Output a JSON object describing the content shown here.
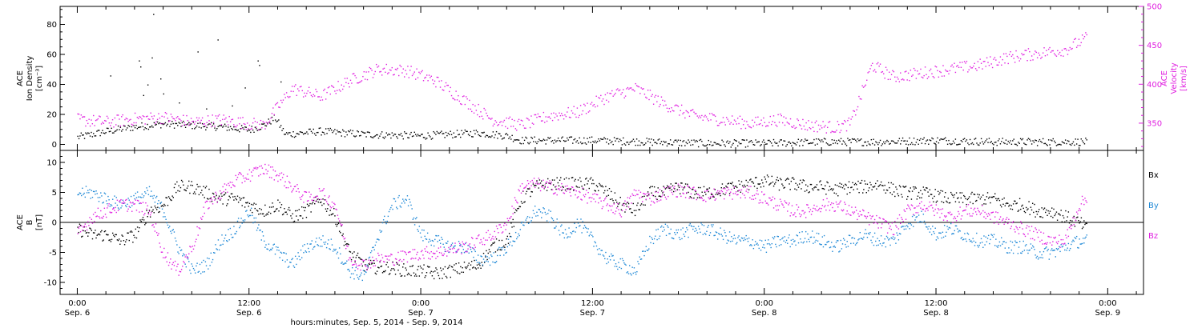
{
  "colors": {
    "black": "#000000",
    "magenta": "#e020e0",
    "blue": "#1e88d6"
  },
  "chart_data": [
    {
      "type": "scatter",
      "panel": "top",
      "ylabel_lines": [
        "ACE",
        "Ion Density",
        "[cm⁻³]"
      ],
      "ylabel_right_lines": [
        "ACE",
        "Velocity",
        "[km/s]"
      ],
      "ylim": [
        -4,
        92
      ],
      "y_ticks": [
        0,
        20,
        40,
        60,
        80
      ],
      "y_ticks_labels": [
        "0",
        "20",
        "40",
        "60",
        "80"
      ],
      "y2lim": [
        315,
        500
      ],
      "y2_ticks": [
        350,
        400,
        450,
        500
      ],
      "y2_ticks_labels": [
        "350",
        "400",
        "450",
        "500"
      ],
      "series": [
        {
          "key": "density",
          "axis": "left",
          "color_key": "black",
          "x": [
            0,
            2,
            4,
            6,
            8,
            10,
            12,
            13,
            13.8,
            14.5,
            17,
            20,
            24,
            28,
            30,
            31,
            32,
            36,
            40,
            44,
            48,
            52,
            56,
            60,
            64,
            68,
            70.5
          ],
          "y": [
            5,
            9,
            12,
            14,
            13,
            12,
            10,
            13,
            18,
            7,
            9,
            7,
            6,
            8,
            6,
            3,
            3,
            3,
            2,
            1,
            1,
            2,
            2,
            3,
            2,
            2,
            2
          ]
        },
        {
          "key": "velocity",
          "axis": "right",
          "color_key": "magenta",
          "x": [
            0,
            2,
            4,
            6,
            8,
            10,
            12,
            13,
            15,
            17,
            19,
            21,
            23,
            25,
            27,
            29,
            31,
            33,
            35,
            37,
            39,
            41,
            43,
            45,
            47,
            49,
            51,
            53,
            54,
            55.5,
            57,
            59,
            61,
            63,
            65,
            67,
            69,
            70.5
          ],
          "y": [
            355,
            352,
            356,
            358,
            352,
            355,
            350,
            348,
            395,
            385,
            405,
            420,
            418,
            405,
            380,
            355,
            348,
            360,
            365,
            385,
            395,
            375,
            360,
            355,
            350,
            355,
            348,
            345,
            350,
            425,
            410,
            415,
            420,
            425,
            435,
            440,
            445,
            460
          ]
        }
      ],
      "scatter_points": [
        {
          "x": 5.3,
          "y": 87
        },
        {
          "x": 9.8,
          "y": 70
        },
        {
          "x": 8.4,
          "y": 62
        },
        {
          "x": 4.3,
          "y": 56
        },
        {
          "x": 4.4,
          "y": 52
        },
        {
          "x": 2.3,
          "y": 46
        },
        {
          "x": 5.2,
          "y": 58
        },
        {
          "x": 5.8,
          "y": 44
        },
        {
          "x": 4.9,
          "y": 40
        },
        {
          "x": 12.6,
          "y": 56
        },
        {
          "x": 12.7,
          "y": 53
        },
        {
          "x": 11.7,
          "y": 38
        },
        {
          "x": 10.8,
          "y": 26
        },
        {
          "x": 6.0,
          "y": 34
        },
        {
          "x": 7.1,
          "y": 28
        },
        {
          "x": 14.2,
          "y": 42
        },
        {
          "x": 4.6,
          "y": 33
        },
        {
          "x": 9.0,
          "y": 24
        }
      ]
    },
    {
      "type": "scatter",
      "panel": "bottom",
      "ylabel_lines": [
        "ACE",
        "B",
        "[nT]"
      ],
      "ylim": [
        -12,
        12
      ],
      "y_ticks": [
        -10,
        -5,
        0,
        5,
        10
      ],
      "y_ticks_labels": [
        "-10",
        "-5",
        "0",
        "5",
        "10"
      ],
      "zero_line": true,
      "series": [
        {
          "key": "bx",
          "legend_label": "Bx",
          "color_key": "black",
          "x": [
            0,
            1,
            2,
            3,
            4,
            5,
            6,
            7,
            8,
            9,
            10,
            11,
            12,
            13,
            14,
            15,
            16,
            17,
            18,
            19,
            20,
            21,
            22,
            23,
            24,
            25,
            26,
            27,
            28,
            29,
            30,
            31,
            32,
            33,
            34,
            35,
            36,
            37,
            38,
            39,
            40,
            41,
            42,
            43,
            44,
            45,
            46,
            47,
            48,
            49,
            50,
            51,
            52,
            53,
            54,
            55,
            56,
            57,
            58,
            59,
            60,
            61,
            62,
            63,
            64,
            65,
            66,
            67,
            68,
            69,
            70,
            70.5
          ],
          "y": [
            -1,
            -2,
            -2,
            -3,
            -2,
            2,
            3,
            6,
            6,
            5,
            4,
            4,
            3,
            2,
            3,
            1,
            2,
            4,
            1,
            -5,
            -7,
            -7.5,
            -7.5,
            -8,
            -8,
            -8.5,
            -8,
            -7.5,
            -7,
            -4,
            -3,
            4,
            6,
            6.5,
            6.5,
            6.5,
            6.5,
            5,
            3,
            2,
            5,
            5,
            6,
            5,
            5,
            5.5,
            6,
            6.5,
            7,
            6.5,
            6.5,
            6,
            6,
            5.5,
            6,
            6,
            6.5,
            5.5,
            5,
            5,
            4.5,
            4,
            4,
            4,
            4,
            3,
            3,
            2,
            2,
            1,
            0,
            -1
          ]
        },
        {
          "key": "by",
          "legend_label": "By",
          "color_key": "blue",
          "x": [
            0,
            1,
            2,
            3,
            4,
            5,
            6,
            7,
            8,
            9,
            10,
            11,
            12,
            13,
            14,
            15,
            16,
            17,
            18,
            19,
            20,
            21,
            22,
            23,
            24,
            25,
            26,
            27,
            28,
            29,
            30,
            31,
            32,
            33,
            34,
            35,
            36,
            37,
            38,
            39,
            40,
            41,
            42,
            43,
            44,
            45,
            46,
            47,
            48,
            49,
            50,
            51,
            52,
            53,
            54,
            55,
            56,
            57,
            58,
            59,
            60,
            61,
            62,
            63,
            64,
            65,
            66,
            67,
            68,
            69,
            70,
            70.5
          ],
          "y": [
            5,
            5,
            4,
            3,
            4,
            5,
            2,
            -4,
            -8,
            -7,
            -3,
            -1,
            2,
            -3,
            -5,
            -7,
            -4,
            -3,
            -4,
            -8,
            -9,
            -2,
            3,
            4,
            -2,
            -3,
            -4,
            -4,
            -6,
            -6,
            -4,
            -1,
            2,
            1,
            -2,
            0,
            -3,
            -6,
            -7,
            -8,
            -3,
            -1,
            -2,
            -1,
            -1,
            -2,
            -3,
            -3,
            -4,
            -3,
            -3,
            -2,
            -3,
            -4,
            -3,
            -2,
            -3,
            -3,
            0,
            1,
            -2,
            -1,
            -2,
            -3,
            -3,
            -4,
            -4,
            -5,
            -5,
            -4,
            -3,
            -3
          ]
        },
        {
          "key": "bz",
          "legend_label": "Bz",
          "color_key": "magenta",
          "x": [
            0,
            1,
            2,
            3,
            4,
            5,
            6,
            7,
            8,
            9,
            10,
            11,
            12,
            13,
            14,
            15,
            16,
            17,
            18,
            19,
            20,
            21,
            22,
            23,
            24,
            25,
            26,
            27,
            28,
            29,
            30,
            31,
            32,
            33,
            34,
            35,
            36,
            37,
            38,
            39,
            40,
            41,
            42,
            43,
            44,
            45,
            46,
            47,
            48,
            49,
            50,
            51,
            52,
            53,
            54,
            55,
            56,
            57,
            58,
            59,
            60,
            61,
            62,
            63,
            64,
            65,
            66,
            67,
            68,
            69,
            70,
            70.5
          ],
          "y": [
            -2,
            1,
            2,
            3,
            3,
            2,
            -5,
            -8,
            -4,
            3,
            5,
            7,
            8,
            9,
            8,
            6,
            4,
            5,
            3,
            -6,
            -7,
            -6,
            -6,
            -5.5,
            -5,
            -5,
            -4.5,
            -4,
            -3,
            -2,
            0,
            6,
            6.5,
            6,
            5.5,
            5,
            4,
            3,
            2,
            5,
            4,
            5,
            5.5,
            5,
            4.5,
            5,
            5,
            5,
            4,
            3,
            2,
            2,
            3,
            3,
            2,
            1,
            0,
            -1,
            2,
            3,
            2,
            1,
            2,
            2,
            1,
            0,
            -1,
            -2,
            -3,
            -3,
            3,
            4
          ]
        }
      ]
    }
  ],
  "x_axis": {
    "xlim": [
      -1.2,
      74.5
    ],
    "ticks": [
      {
        "x": 0,
        "time": "0:00",
        "day": "Sep. 6"
      },
      {
        "x": 12,
        "time": "12:00",
        "day": "Sep. 6"
      },
      {
        "x": 24,
        "time": "0:00",
        "day": "Sep. 7"
      },
      {
        "x": 36,
        "time": "12:00",
        "day": "Sep. 7"
      },
      {
        "x": 48,
        "time": "0:00",
        "day": "Sep. 8"
      },
      {
        "x": 60,
        "time": "12:00",
        "day": "Sep. 8"
      },
      {
        "x": 72,
        "time": "0:00",
        "day": "Sep. 9"
      }
    ],
    "xlabel": "hours:minutes, Sep. 5, 2014 - Sep. 9, 2014"
  }
}
